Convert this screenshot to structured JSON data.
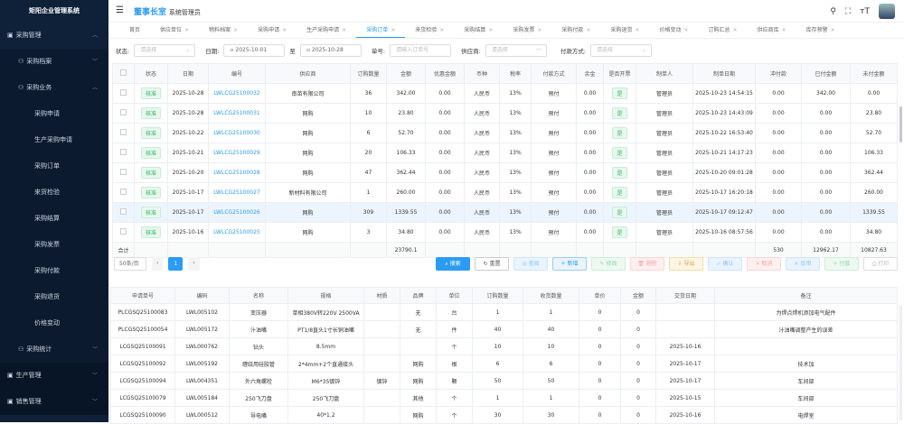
{
  "sidebar": {
    "title": "矩阳企业管理系统",
    "items": [
      {
        "label": "采购管理",
        "level": 0,
        "icon": "cart-icon",
        "open": true
      },
      {
        "label": "采购档案",
        "level": 1,
        "icon": "group-icon"
      },
      {
        "label": "采购业务",
        "level": 1,
        "icon": "group-icon",
        "open": true
      },
      {
        "label": "采购申请",
        "level": 2
      },
      {
        "label": "生产采购申请",
        "level": 2
      },
      {
        "label": "采购订单",
        "level": 2
      },
      {
        "label": "来货检验",
        "level": 2
      },
      {
        "label": "采购结算",
        "level": 2
      },
      {
        "label": "采购发票",
        "level": 2
      },
      {
        "label": "采购付款",
        "level": 2
      },
      {
        "label": "采购退货",
        "level": 2
      },
      {
        "label": "价格变动",
        "level": 2
      },
      {
        "label": "采购统计",
        "level": 1,
        "icon": "chart-icon"
      },
      {
        "label": "生产管理",
        "level": 0,
        "icon": "cross-icon"
      },
      {
        "label": "销售管理",
        "level": 0,
        "icon": "tag-icon"
      }
    ]
  },
  "header": {
    "brand": "董事长室",
    "user": "系统管理员"
  },
  "tabs": [
    {
      "label": "首页"
    },
    {
      "label": "供应单位"
    },
    {
      "label": "物料档案"
    },
    {
      "label": "采购申请"
    },
    {
      "label": "生产采购申请"
    },
    {
      "label": "采购订单",
      "active": true
    },
    {
      "label": "来货检验"
    },
    {
      "label": "采购结算"
    },
    {
      "label": "采购发票"
    },
    {
      "label": "采购付款"
    },
    {
      "label": "采购退货"
    },
    {
      "label": "价格变动"
    },
    {
      "label": "订购汇总"
    },
    {
      "label": "供应商库"
    },
    {
      "label": "库存预警"
    }
  ],
  "filters": {
    "status_label": "状态:",
    "status_placeholder": "请选择",
    "date_label": "日期:",
    "date_from": "2025-10-01",
    "date_to_sep": "至",
    "date_to": "2025-10-28",
    "no_label": "单号:",
    "no_placeholder": "请输入订单号",
    "supplier_label": "供应商:",
    "supplier_placeholder": "请选择",
    "pay_label": "付款方式:",
    "pay_placeholder": "请选择"
  },
  "orders": {
    "columns": [
      "状态",
      "日期",
      "编号",
      "供应商",
      "订购数量",
      "金额",
      "优惠金额",
      "币种",
      "税率",
      "付款方式",
      "余金",
      "是否开票",
      "制单人",
      "制单日期",
      "冲付款",
      "已付金额",
      "未付金额"
    ],
    "rows": [
      [
        "核准",
        "2025-10-28",
        "LWLCG25100032",
        "南苗有限公司",
        "36",
        "342.00",
        "0.00",
        "人民币",
        "13%",
        "预付",
        "0.00",
        "是",
        "管理员",
        "2025-10-23 14:54:15",
        "0.00",
        "342.00",
        "0.00"
      ],
      [
        "核准",
        "2025-10-28",
        "LWLCG25100031",
        "网购",
        "10",
        "23.80",
        "0.00",
        "人民币",
        "13%",
        "预付",
        "0.00",
        "是",
        "管理员",
        "2025-10-23 14:43:09",
        "0.00",
        "0.00",
        "23.80"
      ],
      [
        "核准",
        "2025-10-22",
        "LWLCG25100030",
        "网购",
        "6",
        "52.70",
        "0.00",
        "人民币",
        "13%",
        "预付",
        "0.00",
        "是",
        "管理员",
        "2025-10-22 16:53:40",
        "0.00",
        "0.00",
        "52.70"
      ],
      [
        "核准",
        "2025-10-21",
        "LWLCG25100029",
        "网购",
        "20",
        "106.33",
        "0.00",
        "人民币",
        "13%",
        "预付",
        "0.00",
        "是",
        "管理员",
        "2025-10-21 14:17:23",
        "0.00",
        "0.00",
        "106.33"
      ],
      [
        "核准",
        "2025-10-20",
        "LWLCG25100028",
        "网购",
        "47",
        "362.44",
        "0.00",
        "人民币",
        "13%",
        "预付",
        "0.00",
        "是",
        "管理员",
        "2025-10-20 09:01:28",
        "0.00",
        "0.00",
        "362.44"
      ],
      [
        "核准",
        "2025-10-17",
        "LWLCG25100027",
        "新材料有限公司",
        "1",
        "260.00",
        "0.00",
        "人民币",
        "13%",
        "预付",
        "0.00",
        "是",
        "管理员",
        "2025-10-17 16:20:18",
        "0.00",
        "0.00",
        "260.00"
      ],
      [
        "核准",
        "2025-10-17",
        "LWLCG25100026",
        "网购",
        "309",
        "1339.55",
        "0.00",
        "人民币",
        "13%",
        "预付",
        "0.00",
        "是",
        "管理员",
        "2025-10-17 09:12:47",
        "0.00",
        "0.00",
        "1339.55"
      ],
      [
        "核准",
        "2025-10-16",
        "LWLCG25100025",
        "网购",
        "3",
        "34.80",
        "0.00",
        "人民币",
        "13%",
        "预付",
        "0.00",
        "是",
        "管理员",
        "2025-10-16 08:57:56",
        "0.00",
        "0.00",
        "34.80"
      ]
    ],
    "total_label": "合计",
    "total_amount": "23790.1",
    "total_offset": "530",
    "total_paid": "12962.17",
    "total_unpaid": "10827.63"
  },
  "pager": {
    "page_size": "50条/页",
    "prev": "‹",
    "page": "1",
    "next": "›"
  },
  "buttons": [
    {
      "label": "搜索",
      "icon": "⌕",
      "bg": "#2b9bf4",
      "fg": "#fff",
      "bd": "#2b9bf4"
    },
    {
      "label": "重置",
      "icon": "↻",
      "bg": "#fff",
      "fg": "#555",
      "bd": "#ccc"
    },
    {
      "label": "查阅",
      "icon": "◎",
      "bg": "#eaf4fe",
      "fg": "#8cc4f5",
      "bd": "#cfe5fb"
    },
    {
      "label": "新增",
      "icon": "+",
      "bg": "#eaf4fe",
      "fg": "#2b9bf4",
      "bd": "#9ccbf6"
    },
    {
      "label": "修改",
      "icon": "✎",
      "bg": "#edf9f0",
      "fg": "#8fd5a6",
      "bd": "#cdeed8"
    },
    {
      "label": "删除",
      "icon": "🗑",
      "bg": "#fef0f0",
      "fg": "#f5a3a3",
      "bd": "#fbd5d5"
    },
    {
      "label": "导出",
      "icon": "⇩",
      "bg": "#fdf6e6",
      "fg": "#e6a23c",
      "bd": "#f5dca8"
    },
    {
      "label": "确认",
      "icon": "✓",
      "bg": "#eaf4fe",
      "fg": "#8cc4f5",
      "bd": "#cfe5fb"
    },
    {
      "label": "取消",
      "icon": "×",
      "bg": "#fef0f0",
      "fg": "#f5a3a3",
      "bd": "#fbd5d5"
    },
    {
      "label": "反审",
      "icon": "×",
      "bg": "#eaf4fe",
      "fg": "#8cc4f5",
      "bd": "#cfe5fb"
    },
    {
      "label": "付款",
      "icon": "+",
      "bg": "#edf9f0",
      "fg": "#8fd5a6",
      "bd": "#cdeed8"
    },
    {
      "label": "打印",
      "icon": "⎙",
      "bg": "#fff",
      "fg": "#bbb",
      "bd": "#ddd"
    }
  ],
  "details": {
    "columns": [
      "申请单号",
      "编码",
      "名称",
      "规格",
      "材质",
      "品牌",
      "单位",
      "订购数量",
      "收货数量",
      "单价",
      "金额",
      "交货日期",
      "备注"
    ],
    "rows": [
      [
        "PLCGSQ25100083",
        "LWL005102",
        "变压器",
        "单相380V转220V 2500VA",
        "",
        "无",
        "台",
        "1",
        "1",
        "0",
        "0",
        "",
        "为焊点焊机添加电气配件"
      ],
      [
        "PLCGSQ25100054",
        "LWL005172",
        "汁油嘴",
        "PT1/8直头1寸长铜油嘴",
        "",
        "无",
        "件",
        "40",
        "40",
        "0",
        "0",
        "",
        "汁油嘴调整产生的误差"
      ],
      [
        "LCGSQ25100091",
        "LWL000762",
        "钻头",
        "8.5mm",
        "",
        "",
        "个",
        "10",
        "10",
        "0",
        "0",
        "2025-10-16",
        ""
      ],
      [
        "LCGSQ25100092",
        "LWL005192",
        "缠绕用硅胶管",
        "2*4mm+2个直通接头",
        "",
        "网购",
        "根",
        "6",
        "6",
        "0",
        "0",
        "2025-10-17",
        "技术加"
      ],
      [
        "LCGSQ25100094",
        "LWL004351",
        "外六角螺栓",
        "M6*35镀锌",
        "镀锌",
        "网购",
        "颗",
        "50",
        "50",
        "0",
        "0",
        "2025-10-17",
        "车间部"
      ],
      [
        "LCGSQ25100079",
        "LWL005184",
        "250飞刀盘",
        "250飞刀盘",
        "",
        "其他",
        "个",
        "1",
        "1",
        "0",
        "0",
        "2025-10-15",
        "车间部"
      ],
      [
        "LCGSQ25100090",
        "LWL000512",
        "导电嘴",
        "40*1.2",
        "",
        "网购",
        "个",
        "30",
        "30",
        "0",
        "0",
        "2025-10-16",
        "电焊室"
      ]
    ]
  }
}
